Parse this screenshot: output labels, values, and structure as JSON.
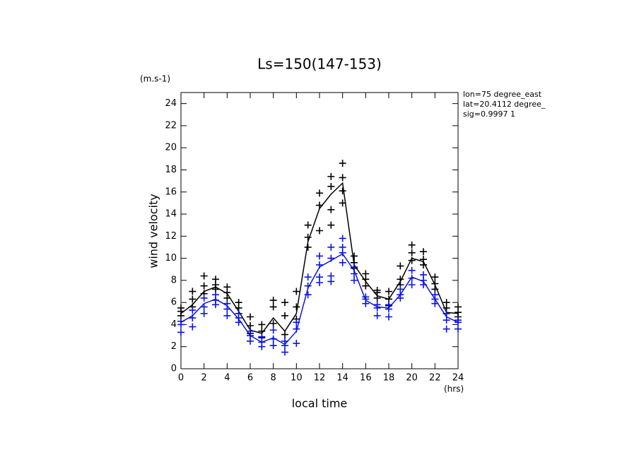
{
  "chart_data": {
    "type": "line",
    "title": "Ls=150(147-153)",
    "y_unit": "(m.s-1)",
    "x_unit": "(hrs)",
    "xlabel": "local time",
    "ylabel": "wind velocity",
    "annotations": [
      "lon=75 degree_east",
      "lat=20.4112 degree_",
      "sig=0.9997 1"
    ],
    "xlim": [
      0,
      24
    ],
    "ylim": [
      0,
      25
    ],
    "xticks": [
      0,
      2,
      4,
      6,
      8,
      10,
      12,
      14,
      16,
      18,
      20,
      22,
      24
    ],
    "yticks": [
      0,
      2,
      4,
      6,
      8,
      10,
      12,
      14,
      16,
      18,
      20,
      22,
      24
    ],
    "x": [
      0,
      1,
      2,
      3,
      4,
      5,
      6,
      7,
      8,
      9,
      10,
      11,
      12,
      13,
      14,
      15,
      16,
      17,
      18,
      19,
      20,
      21,
      22,
      23,
      24
    ],
    "series": [
      {
        "style": "line",
        "color": "#000000",
        "values": [
          5.0,
          5.8,
          7.0,
          7.4,
          6.8,
          5.2,
          3.5,
          3.2,
          4.6,
          3.4,
          5.0,
          11.5,
          14.5,
          15.8,
          16.8,
          9.4,
          7.9,
          6.6,
          6.3,
          7.9,
          10.0,
          9.7,
          7.6,
          5.1,
          5.0
        ]
      },
      {
        "style": "line",
        "color": "#0a14e0",
        "values": [
          4.2,
          4.8,
          5.9,
          6.3,
          5.7,
          4.5,
          3.0,
          2.4,
          2.8,
          2.2,
          3.4,
          7.3,
          9.2,
          9.8,
          10.4,
          8.9,
          6.2,
          5.6,
          5.5,
          6.7,
          8.3,
          7.9,
          6.3,
          4.7,
          4.2
        ]
      },
      {
        "style": "cross",
        "color": "#000000",
        "x": [
          0,
          0,
          0,
          1,
          1,
          1,
          2,
          2,
          2,
          3,
          3,
          3,
          4,
          4,
          4,
          5,
          5,
          5,
          6,
          6,
          6,
          7,
          7,
          7,
          8,
          8,
          8,
          9,
          9,
          9,
          10,
          10,
          10,
          11,
          11,
          11,
          12,
          12,
          12,
          13,
          13,
          13,
          13,
          14,
          14,
          14,
          14,
          15,
          15,
          15,
          16,
          16,
          16,
          17,
          17,
          17,
          18,
          18,
          18,
          19,
          19,
          19,
          20,
          20,
          20,
          21,
          21,
          21,
          22,
          22,
          22,
          23,
          23,
          23,
          24,
          24,
          24
        ],
        "values": [
          4.8,
          5.2,
          5.5,
          5.6,
          6.3,
          7.0,
          6.8,
          7.5,
          8.4,
          7.2,
          7.6,
          8.1,
          6.4,
          6.9,
          7.4,
          5.0,
          5.5,
          6.0,
          3.2,
          3.9,
          4.7,
          2.8,
          3.4,
          4.0,
          4.1,
          5.6,
          6.2,
          3.1,
          4.8,
          6.0,
          4.5,
          5.6,
          7.0,
          11.0,
          11.9,
          13.0,
          12.5,
          14.8,
          15.9,
          13.0,
          14.4,
          16.5,
          17.4,
          15.0,
          16.1,
          17.3,
          18.6,
          9.1,
          9.6,
          10.2,
          7.5,
          8.1,
          8.6,
          6.4,
          6.9,
          7.1,
          5.7,
          6.3,
          7.0,
          7.6,
          8.1,
          9.3,
          9.8,
          10.5,
          11.2,
          9.4,
          9.9,
          10.6,
          7.2,
          7.7,
          8.3,
          5.0,
          5.5,
          6.0,
          4.7,
          5.1,
          5.6
        ]
      },
      {
        "style": "cross",
        "color": "#0a14e0",
        "x": [
          0,
          0,
          0,
          1,
          1,
          1,
          2,
          2,
          2,
          3,
          3,
          3,
          4,
          4,
          4,
          5,
          5,
          5,
          6,
          6,
          6,
          7,
          7,
          7,
          8,
          8,
          8,
          9,
          9,
          9,
          10,
          10,
          10,
          11,
          11,
          11,
          12,
          12,
          12,
          12,
          13,
          13,
          13,
          13,
          14,
          14,
          14,
          14,
          15,
          15,
          15,
          16,
          16,
          16,
          17,
          17,
          17,
          18,
          18,
          18,
          19,
          19,
          19,
          20,
          20,
          20,
          21,
          21,
          21,
          22,
          22,
          22,
          23,
          23,
          23,
          24,
          24,
          24
        ],
        "values": [
          3.3,
          4.0,
          4.3,
          3.8,
          4.6,
          5.3,
          5.0,
          5.6,
          6.4,
          5.8,
          6.2,
          6.7,
          4.8,
          5.4,
          5.9,
          4.2,
          4.6,
          5.0,
          2.5,
          3.0,
          3.4,
          2.0,
          2.4,
          2.9,
          2.1,
          2.7,
          3.5,
          1.5,
          2.1,
          2.5,
          2.3,
          3.6,
          4.2,
          6.7,
          7.5,
          8.3,
          7.8,
          8.3,
          9.4,
          10.2,
          7.9,
          8.4,
          10.0,
          11.0,
          9.6,
          10.5,
          11.0,
          11.8,
          8.0,
          8.6,
          9.2,
          5.9,
          6.3,
          6.5,
          4.8,
          5.5,
          5.8,
          4.7,
          5.4,
          5.8,
          6.4,
          6.7,
          7.2,
          7.6,
          8.2,
          8.9,
          7.6,
          8.0,
          8.5,
          5.9,
          6.3,
          6.7,
          3.6,
          4.4,
          5.0,
          3.6,
          4.2,
          4.4
        ]
      }
    ]
  }
}
